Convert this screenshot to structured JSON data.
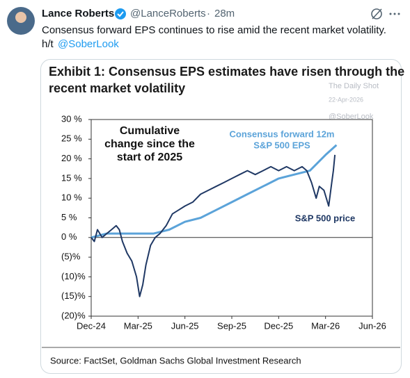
{
  "tweet": {
    "name": "Lance Roberts",
    "handle": "@LanceRoberts",
    "separator": "·",
    "time": "28m",
    "text_line1": "Consensus forward EPS continues to rise amid the recent market volatility.",
    "text_line2_prefix": "h/t",
    "mention": "@SoberLook"
  },
  "chart_data": {
    "type": "line",
    "title": [
      "Exhibit 1: Consensus EPS estimates have risen through the",
      "recent market volatility"
    ],
    "watermark": [
      "The Daily Shot",
      "22-Apr-2026",
      "@SoberLook"
    ],
    "source": "Source: FactSet, Goldman Sachs Global Investment Research",
    "annotations": {
      "cumulative": [
        "Cumulative",
        "change since the",
        "start of 2025"
      ],
      "consensus": [
        "Consensus forward 12m",
        "S&P 500 EPS"
      ],
      "price": "S&P 500 price"
    },
    "xlim": [
      0,
      18
    ],
    "xticks": [
      {
        "value": 0,
        "label": "Dec-24"
      },
      {
        "value": 3,
        "label": "Mar-25"
      },
      {
        "value": 6,
        "label": "Jun-25"
      },
      {
        "value": 9,
        "label": "Sep-25"
      },
      {
        "value": 12,
        "label": "Dec-25"
      },
      {
        "value": 15,
        "label": "Mar-26"
      },
      {
        "value": 18,
        "label": "Jun-26"
      }
    ],
    "ylim": [
      -20,
      30
    ],
    "yticks": [
      {
        "value": 30,
        "label": "30 %"
      },
      {
        "value": 25,
        "label": "25 %"
      },
      {
        "value": 20,
        "label": "20 %"
      },
      {
        "value": 15,
        "label": "15 %"
      },
      {
        "value": 10,
        "label": "10 %"
      },
      {
        "value": 5,
        "label": "5 %"
      },
      {
        "value": 0,
        "label": "0 %"
      },
      {
        "value": -5,
        "label": "(5)%"
      },
      {
        "value": -10,
        "label": "(10)%"
      },
      {
        "value": -15,
        "label": "(15)%"
      },
      {
        "value": -20,
        "label": "(20)%"
      }
    ],
    "series": [
      {
        "name": "S&P 500 price",
        "color": "#1f3864",
        "x": [
          0,
          0.2,
          0.4,
          0.7,
          1,
          1.3,
          1.6,
          1.8,
          2.0,
          2.3,
          2.6,
          2.9,
          3.1,
          3.3,
          3.5,
          3.8,
          4.1,
          4.4,
          4.8,
          5.2,
          5.6,
          6,
          6.5,
          7,
          7.5,
          8,
          8.5,
          9,
          9.5,
          10,
          10.5,
          11,
          11.5,
          12,
          12.5,
          13,
          13.5,
          13.8,
          14.1,
          14.4,
          14.6,
          14.9,
          15.2,
          15.4,
          15.5,
          15.6
        ],
        "values": [
          0,
          -1,
          2,
          0,
          1,
          2,
          3,
          2,
          -1,
          -4,
          -6,
          -10,
          -15,
          -12,
          -7,
          -2,
          0,
          1,
          3,
          6,
          7,
          8,
          9,
          11,
          12,
          13,
          14,
          15,
          16,
          17,
          16,
          17,
          18,
          17,
          18,
          17,
          18,
          17,
          14,
          10,
          13,
          12,
          8,
          14,
          17,
          21
        ]
      },
      {
        "name": "Consensus forward 12m S&P 500 EPS",
        "color": "#5ba3d9",
        "x": [
          0,
          1,
          2,
          3,
          4,
          5,
          6,
          7,
          8,
          9,
          10,
          11,
          12,
          13,
          14,
          14.5,
          15,
          15.7
        ],
        "values": [
          0,
          1,
          1,
          1,
          1,
          2,
          4,
          5,
          7,
          9,
          11,
          13,
          15,
          16,
          17,
          19,
          21,
          23.5
        ]
      }
    ]
  }
}
